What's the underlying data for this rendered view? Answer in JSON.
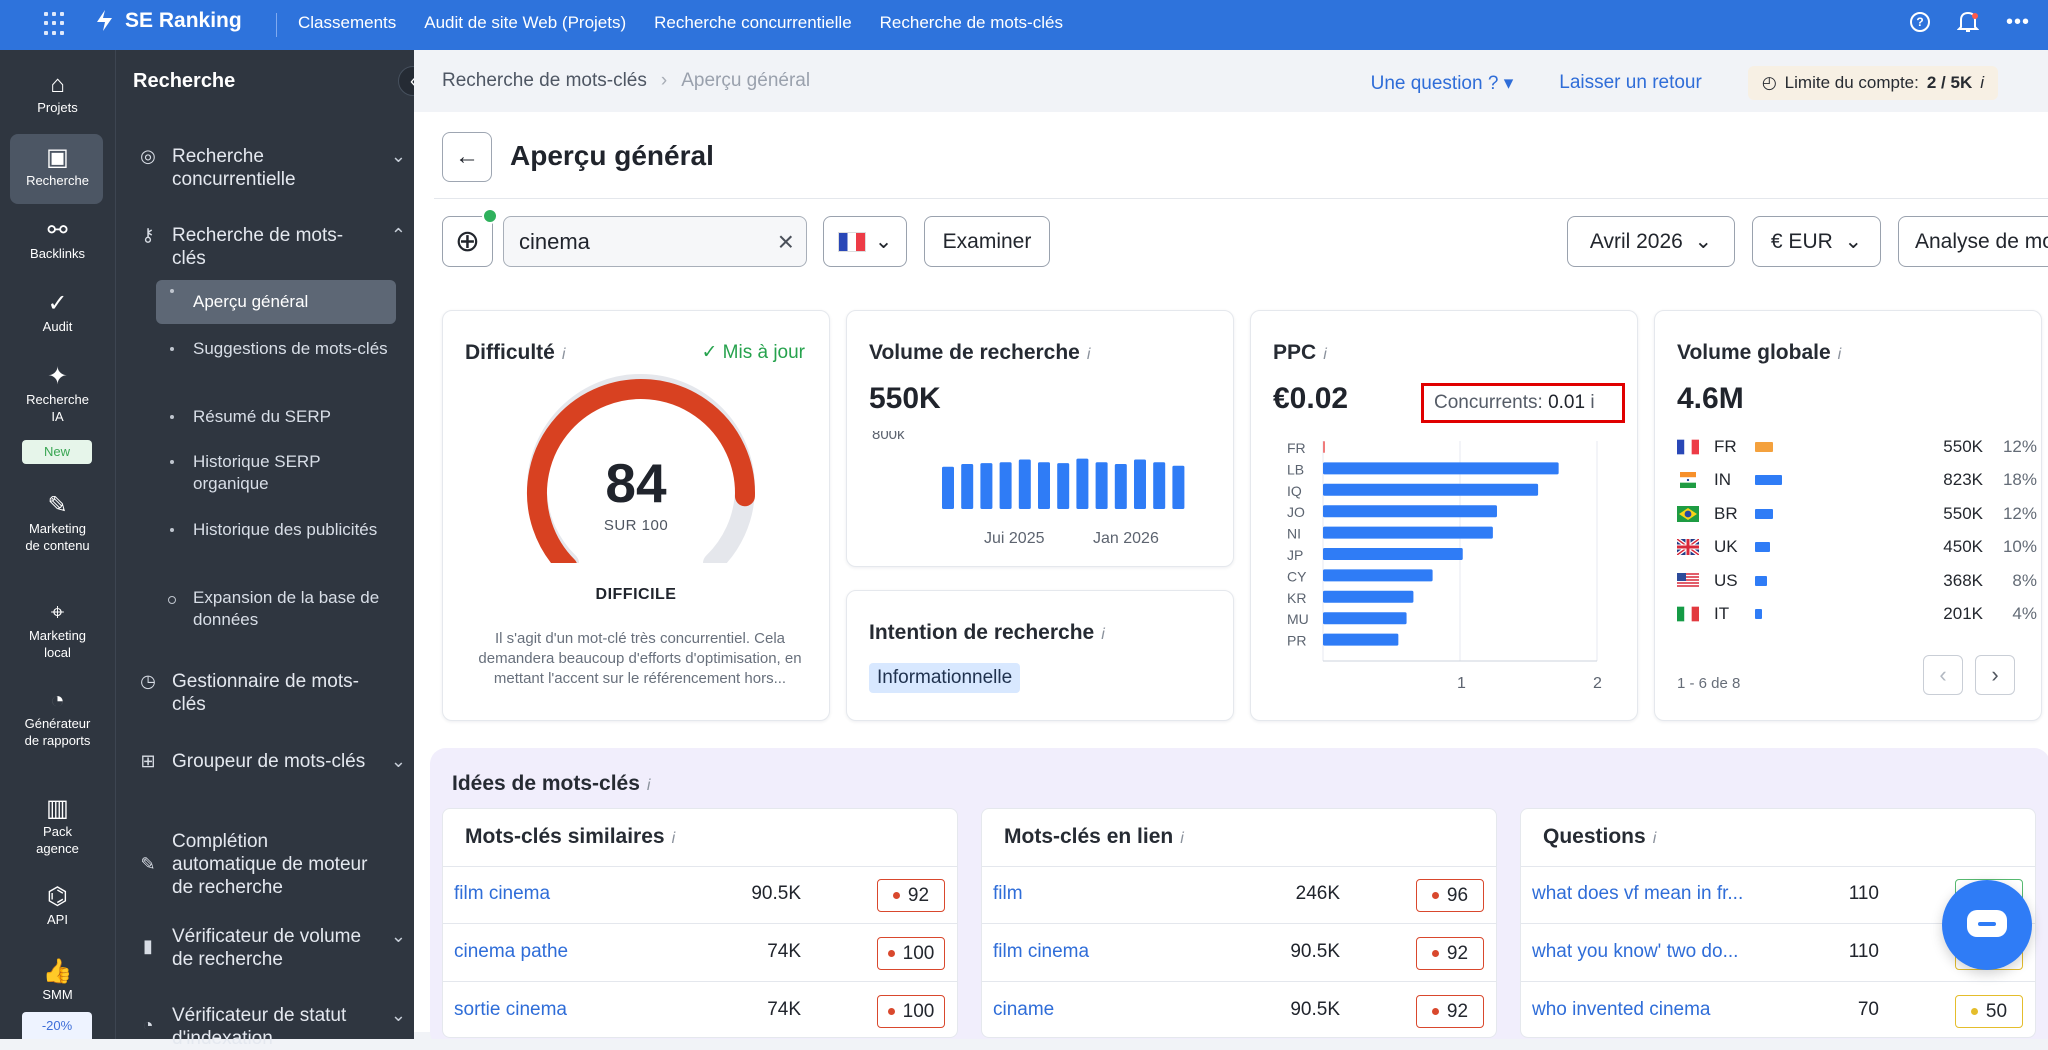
{
  "topbar": {
    "brand": "SE Ranking",
    "nav": [
      "Classements",
      "Audit de site Web (Projets)",
      "Recherche concurrentielle",
      "Recherche de mots-clés"
    ],
    "icons": [
      "help-icon",
      "bell-icon",
      "more-icon"
    ]
  },
  "rail": {
    "items": [
      "Projets",
      "Recherche",
      "Backlinks",
      "Audit",
      "Recherche IA",
      "Marketing de contenu",
      "Marketing local",
      "Générateur de rapports",
      "Pack agence",
      "API",
      "SMM"
    ],
    "new_badge": "New",
    "promo": "-20%"
  },
  "sidebar": {
    "title": "Recherche",
    "items": [
      "Recherche concurrentielle",
      "Recherche de mots-clés",
      "Gestionnaire de mots-clés",
      "Groupeur de mots-clés",
      "Complétion automatique de moteur de recherche",
      "Vérificateur de volume de recherche",
      "Vérificateur de statut d'indexation"
    ],
    "sub_items": [
      "Aperçu général",
      "Suggestions de mots-clés",
      "Résumé du SERP",
      "Historique SERP organique",
      "Historique des publicités",
      "Expansion de la base de données"
    ]
  },
  "header": {
    "breadcrumb": [
      "Recherche de mots-clés",
      "Aperçu général"
    ],
    "question": "Une question ?",
    "feedback": "Laisser un retour",
    "limit_label": "Limite du compte:",
    "limit_value": "2 / 5K"
  },
  "controls": {
    "page_title": "Aperçu général",
    "search_value": "cinema",
    "examine": "Examiner",
    "month": "Avril 2026",
    "currency": "€ EUR",
    "bulk": "Analyse de mots-clés groupée"
  },
  "difficulty": {
    "title": "Difficulté",
    "status": "Mis à jour",
    "score": "84",
    "scale": "SUR 100",
    "label": "DIFFICILE",
    "note": "Il s'agit d'un mot-clé très concurrentiel. Cela demandera beaucoup d'efforts d'optimisation, en mettant l'accent sur le référencement hors..."
  },
  "volume": {
    "title": "Volume de recherche",
    "value": "550K"
  },
  "intent": {
    "title": "Intention de recherche",
    "value": "Informationnelle"
  },
  "ppc": {
    "title": "PPC",
    "value": "€0.02",
    "competitors_label": "Concurrents:",
    "competitors_value": "0.01"
  },
  "global_volume": {
    "title": "Volume globale",
    "value": "4.6M",
    "pager": "1 - 6 de 8",
    "rows": [
      {
        "code": "FR",
        "volume": "550K",
        "pct": "12%",
        "bar": 0.12,
        "color": "#f4a13d"
      },
      {
        "code": "IN",
        "volume": "823K",
        "pct": "18%",
        "bar": 0.18,
        "color": "#2f7cf6"
      },
      {
        "code": "BR",
        "volume": "550K",
        "pct": "12%",
        "bar": 0.12,
        "color": "#2f7cf6"
      },
      {
        "code": "UK",
        "volume": "450K",
        "pct": "10%",
        "bar": 0.1,
        "color": "#2f7cf6"
      },
      {
        "code": "US",
        "volume": "368K",
        "pct": "8%",
        "bar": 0.08,
        "color": "#2f7cf6"
      },
      {
        "code": "IT",
        "volume": "201K",
        "pct": "4%",
        "bar": 0.04,
        "color": "#2f7cf6"
      }
    ]
  },
  "ideas": {
    "title": "Idées de mots-clés",
    "similar": {
      "title": "Mots-clés similaires",
      "rows": [
        {
          "keyword": "film cinema",
          "volume": "90.5K",
          "kd": "92"
        },
        {
          "keyword": "cinema pathe",
          "volume": "74K",
          "kd": "100"
        },
        {
          "keyword": "sortie cinema",
          "volume": "74K",
          "kd": "100"
        }
      ]
    },
    "related": {
      "title": "Mots-clés en lien",
      "rows": [
        {
          "keyword": "film",
          "volume": "246K",
          "kd": "96"
        },
        {
          "keyword": "film cinema",
          "volume": "90.5K",
          "kd": "92"
        },
        {
          "keyword": "ciname",
          "volume": "90.5K",
          "kd": "92"
        }
      ]
    },
    "questions": {
      "title": "Questions",
      "rows": [
        {
          "keyword": "what does vf mean in fr...",
          "volume": "110",
          "kd": "50"
        },
        {
          "keyword": "what you know' two do...",
          "volume": "110",
          "kd": "50"
        },
        {
          "keyword": "who invented cinema",
          "volume": "70",
          "kd": "50"
        }
      ]
    }
  },
  "chart_data": [
    {
      "type": "bar",
      "categories": [
        "",
        "",
        "",
        "",
        "",
        "",
        "",
        "",
        "",
        "",
        "",
        "",
        ""
      ],
      "values": [
        470,
        500,
        510,
        520,
        550,
        520,
        510,
        560,
        520,
        500,
        550,
        520,
        480
      ],
      "ylim": [
        0,
        800
      ],
      "y_tick_labels": [
        "800k"
      ],
      "x_tick_labels": [
        "Jui 2025",
        "Jan 2026"
      ],
      "grid": false
    },
    {
      "type": "bar",
      "orientation": "horizontal",
      "categories": [
        "FR",
        "LB",
        "IQ",
        "JO",
        "NI",
        "JP",
        "CY",
        "KR",
        "MU",
        "PR"
      ],
      "values": [
        0.01,
        1.72,
        1.57,
        1.27,
        1.24,
        1.02,
        0.8,
        0.66,
        0.61,
        0.55
      ],
      "xlim": [
        0,
        2
      ],
      "x_tick_labels": [
        "1",
        "2"
      ],
      "grid": true
    }
  ]
}
